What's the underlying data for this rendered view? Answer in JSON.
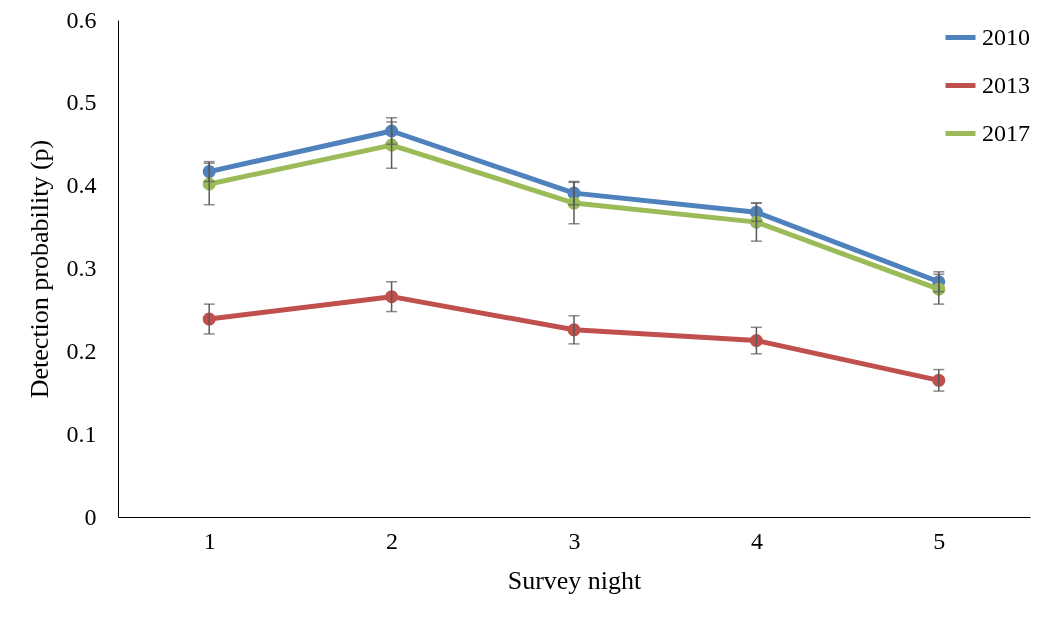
{
  "chart_data": {
    "type": "line",
    "xlabel": "Survey night",
    "ylabel": "Detection probability (p)",
    "categories": [
      "1",
      "2",
      "3",
      "4",
      "5"
    ],
    "ylim": [
      0,
      0.6
    ],
    "yticks": [
      0,
      0.1,
      0.2,
      0.3,
      0.4,
      0.5,
      0.6
    ],
    "grid": false,
    "legend": "top right",
    "marker": "circle",
    "line_style": "solid",
    "series": [
      {
        "name": "2010",
        "color": "#4f81bd",
        "values": [
          0.417,
          0.466,
          0.391,
          0.368,
          0.284
        ],
        "errors": [
          0.012,
          0.016,
          0.014,
          0.011,
          0.012
        ]
      },
      {
        "name": "2013",
        "color": "#c0504d",
        "values": [
          0.239,
          0.266,
          0.226,
          0.213,
          0.165
        ],
        "errors": [
          0.018,
          0.018,
          0.017,
          0.016,
          0.013
        ]
      },
      {
        "name": "2017",
        "color": "#9bbb59",
        "values": [
          0.402,
          0.449,
          0.379,
          0.356,
          0.275
        ],
        "errors": [
          0.025,
          0.028,
          0.025,
          0.023,
          0.018
        ]
      }
    ]
  }
}
